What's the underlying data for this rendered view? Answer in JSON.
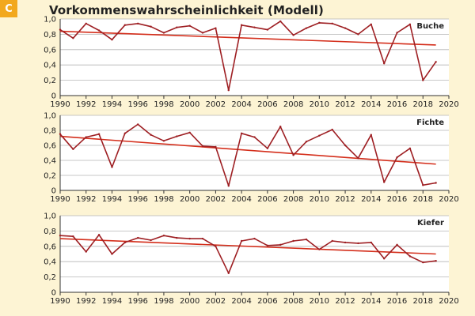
{
  "badge": "C",
  "title": "Vorkommenswahrscheinlichkeit (Modell)",
  "colors": {
    "background": "#fdf4d4",
    "plot_background": "#ffffff",
    "series": "#9e1f23",
    "trend": "#d42e1b",
    "grid": "#b5b5b5",
    "badge": "#f2a81d"
  },
  "chart_data": [
    {
      "type": "line",
      "name": "Buche",
      "x": [
        1990,
        1991,
        1992,
        1993,
        1994,
        1995,
        1996,
        1997,
        1998,
        1999,
        2000,
        2001,
        2002,
        2003,
        2004,
        2005,
        2006,
        2007,
        2008,
        2009,
        2010,
        2011,
        2012,
        2013,
        2014,
        2015,
        2016,
        2017,
        2018,
        2019
      ],
      "values": [
        0.86,
        0.75,
        0.94,
        0.85,
        0.73,
        0.92,
        0.94,
        0.9,
        0.82,
        0.89,
        0.91,
        0.82,
        0.88,
        0.07,
        0.92,
        0.89,
        0.86,
        0.97,
        0.79,
        0.88,
        0.95,
        0.94,
        0.88,
        0.8,
        0.93,
        0.42,
        0.82,
        0.93,
        0.2,
        0.44
      ],
      "trend": [
        0.84,
        0.66
      ],
      "xlim": [
        1990,
        2020
      ],
      "ylim": [
        0,
        1.0
      ],
      "x_ticks": [
        "1990",
        "1992",
        "1994",
        "1996",
        "1998",
        "2000",
        "2002",
        "2004",
        "2006",
        "2008",
        "2010",
        "2012",
        "2014",
        "2016",
        "2018",
        "2020"
      ],
      "y_ticks": [
        "0",
        "0,2",
        "0,4",
        "0,6",
        "0,8",
        "1,0"
      ],
      "grid": "horizontal"
    },
    {
      "type": "line",
      "name": "Fichte",
      "x": [
        1990,
        1991,
        1992,
        1993,
        1994,
        1995,
        1996,
        1997,
        1998,
        1999,
        2000,
        2001,
        2002,
        2003,
        2004,
        2005,
        2006,
        2007,
        2008,
        2009,
        2010,
        2011,
        2012,
        2013,
        2014,
        2015,
        2016,
        2017,
        2018,
        2019
      ],
      "values": [
        0.75,
        0.55,
        0.71,
        0.75,
        0.31,
        0.76,
        0.88,
        0.74,
        0.66,
        0.72,
        0.77,
        0.59,
        0.58,
        0.06,
        0.76,
        0.71,
        0.56,
        0.85,
        0.47,
        0.65,
        0.73,
        0.81,
        0.6,
        0.43,
        0.74,
        0.11,
        0.44,
        0.56,
        0.07,
        0.1
      ],
      "trend": [
        0.72,
        0.35
      ],
      "xlim": [
        1990,
        2020
      ],
      "ylim": [
        0,
        1.0
      ],
      "x_ticks": [
        "1990",
        "1992",
        "1994",
        "1996",
        "1998",
        "2000",
        "2002",
        "2004",
        "2006",
        "2008",
        "2010",
        "2012",
        "2014",
        "2016",
        "2018",
        "2020"
      ],
      "y_ticks": [
        "0",
        "0,2",
        "0,4",
        "0,6",
        "0,8",
        "1,0"
      ],
      "grid": "horizontal"
    },
    {
      "type": "line",
      "name": "Kiefer",
      "x": [
        1990,
        1991,
        1992,
        1993,
        1994,
        1995,
        1996,
        1997,
        1998,
        1999,
        2000,
        2001,
        2002,
        2003,
        2004,
        2005,
        2006,
        2007,
        2008,
        2009,
        2010,
        2011,
        2012,
        2013,
        2014,
        2015,
        2016,
        2017,
        2018,
        2019
      ],
      "values": [
        0.74,
        0.73,
        0.53,
        0.75,
        0.5,
        0.65,
        0.71,
        0.68,
        0.74,
        0.71,
        0.7,
        0.7,
        0.6,
        0.25,
        0.67,
        0.7,
        0.61,
        0.62,
        0.67,
        0.69,
        0.56,
        0.67,
        0.65,
        0.64,
        0.65,
        0.44,
        0.62,
        0.47,
        0.39,
        0.41
      ],
      "trend": [
        0.7,
        0.5
      ],
      "xlim": [
        1990,
        2020
      ],
      "ylim": [
        0,
        1.0
      ],
      "x_ticks": [
        "1990",
        "1992",
        "1994",
        "1996",
        "1998",
        "2000",
        "2002",
        "2004",
        "2006",
        "2008",
        "2010",
        "2012",
        "2014",
        "2016",
        "2018",
        "2020"
      ],
      "y_ticks": [
        "0",
        "0,2",
        "0,4",
        "0,6",
        "0,8",
        "1,0"
      ],
      "grid": "horizontal"
    }
  ]
}
